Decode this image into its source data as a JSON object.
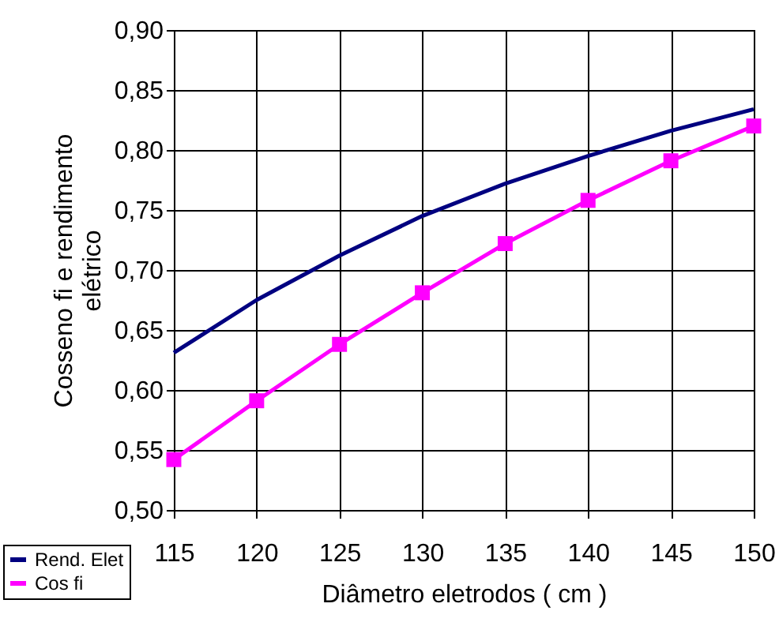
{
  "chart_data": {
    "type": "line",
    "xlabel": "Diâmetro eletrodos ( cm )",
    "ylabel": "Cosseno fi e rendimento elétrico",
    "x": [
      115,
      120,
      125,
      130,
      135,
      140,
      145,
      150
    ],
    "series": [
      {
        "name": "Rend. Elet",
        "color": "#000080",
        "marker": "none",
        "values": [
          0.631,
          0.675,
          0.712,
          0.745,
          0.772,
          0.795,
          0.816,
          0.834
        ]
      },
      {
        "name": "Cos fi",
        "color": "#ff00ff",
        "marker": "square",
        "values": [
          0.542,
          0.591,
          0.638,
          0.681,
          0.722,
          0.758,
          0.791,
          0.82
        ]
      }
    ],
    "xlim": [
      115,
      150
    ],
    "xticks": [
      115,
      120,
      125,
      130,
      135,
      140,
      145,
      150
    ],
    "ylim": [
      0.5,
      0.9
    ],
    "yticks": [
      {
        "value": 0.5,
        "label": "0,50"
      },
      {
        "value": 0.55,
        "label": "0,55"
      },
      {
        "value": 0.6,
        "label": "0,60"
      },
      {
        "value": 0.65,
        "label": "0,65"
      },
      {
        "value": 0.7,
        "label": "0,70"
      },
      {
        "value": 0.75,
        "label": "0,75"
      },
      {
        "value": 0.8,
        "label": "0,80"
      },
      {
        "value": 0.85,
        "label": "0,85"
      },
      {
        "value": 0.9,
        "label": "0,90"
      }
    ],
    "grid": true,
    "legend": "bottom left",
    "line_style": "solid"
  }
}
